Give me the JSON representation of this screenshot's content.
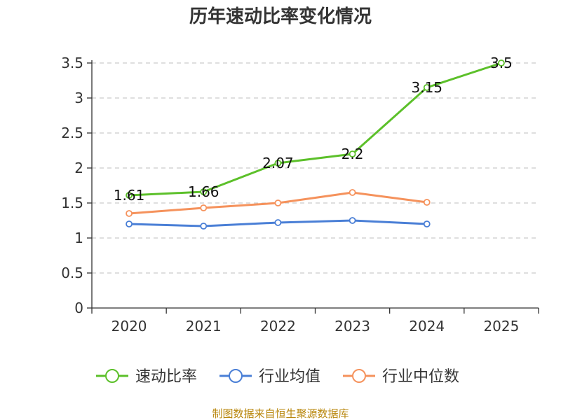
{
  "chart_data": {
    "type": "line",
    "title": "历年速动比率变化情况",
    "categories": [
      "2020",
      "2021",
      "2022",
      "2023",
      "2024",
      "2025"
    ],
    "y_ticks": [
      "0",
      "0.5",
      "1",
      "1.5",
      "2",
      "2.5",
      "3",
      "3.5"
    ],
    "ylim": [
      0,
      3.5
    ],
    "grid": true,
    "legend_position": "bottom",
    "series": [
      {
        "name": "速动比率",
        "color": "#5cc02a",
        "values": [
          1.61,
          1.66,
          2.07,
          2.2,
          3.15,
          3.5
        ],
        "labels": [
          "1.61",
          "1.66",
          "2.07",
          "2.2",
          "3.15",
          "3.5"
        ]
      },
      {
        "name": "行业均值",
        "color": "#4a7fd6",
        "values": [
          1.2,
          1.17,
          1.22,
          1.25,
          1.2,
          null
        ]
      },
      {
        "name": "行业中位数",
        "color": "#f5925c",
        "values": [
          1.35,
          1.43,
          1.5,
          1.65,
          1.51,
          null
        ]
      }
    ]
  },
  "footer": {
    "source": "制图数据来自恒生聚源数据库"
  }
}
